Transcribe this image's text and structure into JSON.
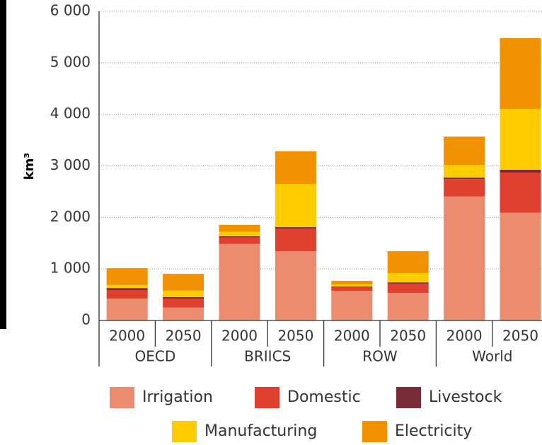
{
  "chart_data": {
    "type": "bar",
    "stacked": true,
    "y_label": "km³",
    "categories": [
      "2000",
      "2050",
      "2000",
      "2050",
      "2000",
      "2050",
      "2000",
      "2050"
    ],
    "groups": [
      "OECD",
      "BRIICS",
      "ROW",
      "World"
    ],
    "series": [
      {
        "name": "Irrigation",
        "color": "#ec8c6f",
        "values": [
          425,
          250,
          1485,
          1345,
          575,
          535,
          2405,
          2090
        ]
      },
      {
        "name": "Domestic",
        "color": "#e0402e",
        "values": [
          165,
          175,
          125,
          440,
          70,
          180,
          340,
          780
        ]
      },
      {
        "name": "Livestock",
        "color": "#7a2b38",
        "values": [
          40,
          30,
          25,
          30,
          15,
          25,
          30,
          55
        ]
      },
      {
        "name": "Manufacturing",
        "color": "#ffcc00",
        "values": [
          60,
          125,
          85,
          835,
          40,
          180,
          245,
          1180
        ]
      },
      {
        "name": "Electricity",
        "color": "#f39200",
        "values": [
          325,
          325,
          135,
          635,
          70,
          425,
          550,
          1375
        ]
      }
    ],
    "ylim": [
      0,
      6000
    ],
    "yticks": [
      0,
      {
        "value": 1000,
        "label": "1 000"
      },
      {
        "value": 2000,
        "label": "2 000"
      },
      {
        "value": 3000,
        "label": "3 000"
      },
      {
        "value": 4000,
        "label": "4 000"
      },
      {
        "value": 5000,
        "label": "5 000"
      },
      {
        "value": 6000,
        "label": "6 000"
      }
    ],
    "grid": true
  }
}
